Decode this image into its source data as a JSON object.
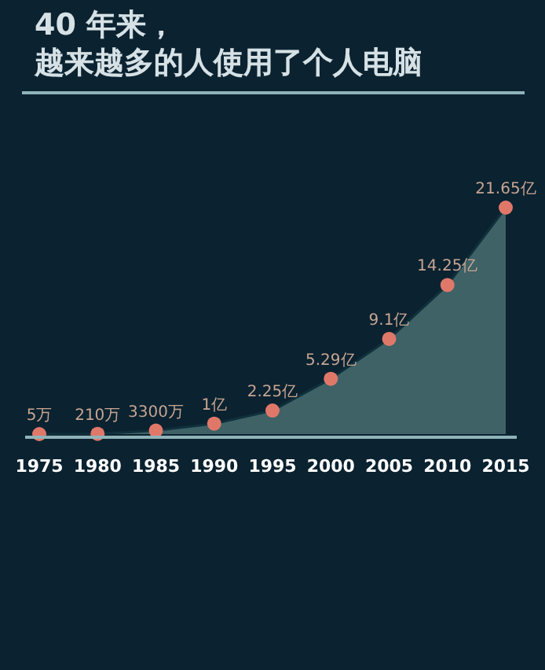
{
  "chart_data": {
    "type": "area",
    "title": "40 年来，",
    "subtitle": "越来越多的人使用了个人电脑",
    "categories": [
      "1975",
      "1980",
      "1985",
      "1990",
      "1995",
      "2000",
      "2005",
      "2010",
      "2015"
    ],
    "series": [
      {
        "color": "#3e6266",
        "values": [
          0.0005,
          0.021,
          0.33,
          1,
          2.25,
          5.29,
          9.1,
          14.25,
          21.65
        ],
        "value_labels": [
          null,
          null,
          null,
          "1亿",
          "2.25亿",
          "5.29亿",
          "9.1亿",
          "14.25亿",
          "21.65亿"
        ]
      }
    ],
    "annotations": [
      {
        "text": "5万",
        "x": "1975",
        "y": 0.0005
      },
      {
        "text": "210万",
        "x": "1980",
        "y": 0.021
      },
      {
        "text": "3300万",
        "x": "1985",
        "y": 0.33
      }
    ],
    "marker": "circle"
  }
}
